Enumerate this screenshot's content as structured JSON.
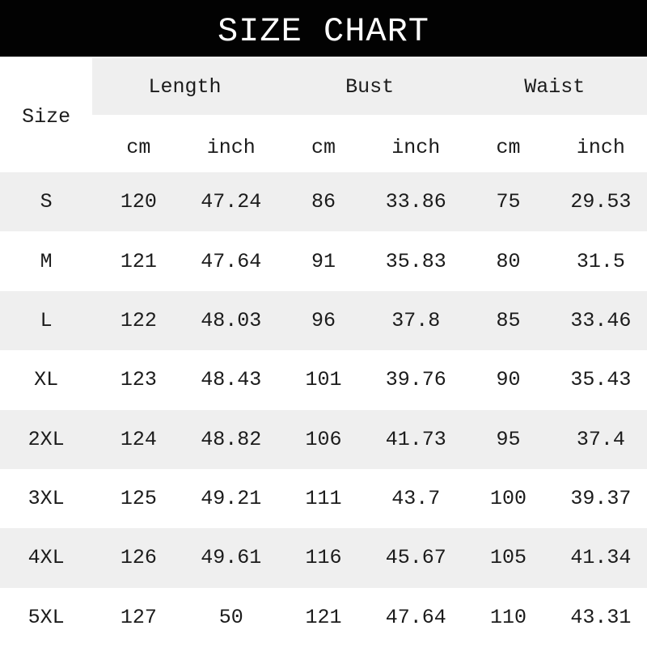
{
  "header": {
    "title": "SIZE CHART"
  },
  "table": {
    "size_column_label": "Size",
    "groups": [
      "Length",
      "Bust",
      "Waist"
    ],
    "units": [
      "cm",
      "inch",
      "cm",
      "inch",
      "cm",
      "inch"
    ]
  },
  "chart_data": {
    "type": "table",
    "title": "SIZE CHART",
    "columns": [
      "Size",
      "Length (cm)",
      "Length (inch)",
      "Bust (cm)",
      "Bust (inch)",
      "Waist (cm)",
      "Waist (inch)"
    ],
    "rows": [
      [
        "S",
        120,
        47.24,
        86,
        33.86,
        75,
        29.53
      ],
      [
        "M",
        121,
        47.64,
        91,
        35.83,
        80,
        31.5
      ],
      [
        "L",
        122,
        48.03,
        96,
        37.8,
        85,
        33.46
      ],
      [
        "XL",
        123,
        48.43,
        101,
        39.76,
        90,
        35.43
      ],
      [
        "2XL",
        124,
        48.82,
        106,
        41.73,
        95,
        37.4
      ],
      [
        "3XL",
        125,
        49.21,
        111,
        43.7,
        100,
        39.37
      ],
      [
        "4XL",
        126,
        49.61,
        116,
        45.67,
        105,
        41.34
      ],
      [
        "5XL",
        127,
        50,
        121,
        47.64,
        110,
        43.31
      ]
    ],
    "layout": {
      "row_striping": "odd rows light gray",
      "grid_lines": false
    }
  },
  "colors": {
    "title_bg": "#020202",
    "title_text": "#ffffff",
    "stripe_bg": "#efefef",
    "row_bg": "#ffffff",
    "text": "#1b1b1b"
  }
}
